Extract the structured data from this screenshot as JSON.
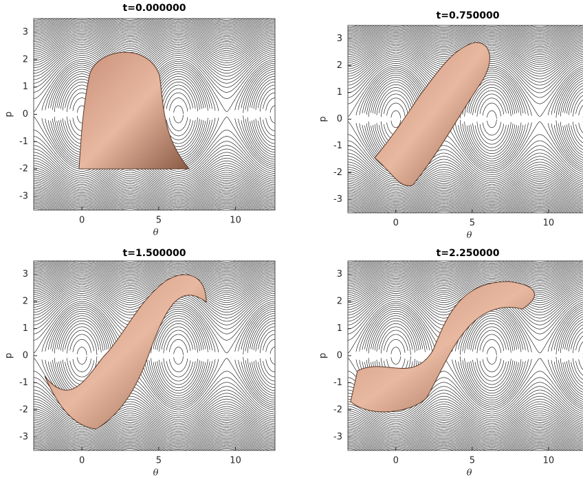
{
  "chart_data": [
    {
      "type": "phase-portrait",
      "title": "t=0.000000",
      "xlabel": "θ",
      "ylabel": "p",
      "xlim": [
        -3.14,
        12.57
      ],
      "ylim": [
        -3.5,
        3.5
      ],
      "xticks": [
        0,
        5,
        10
      ],
      "yticks": [
        -3,
        -2,
        -1,
        0,
        1,
        2,
        3
      ]
    },
    {
      "type": "phase-portrait",
      "title": "t=0.750000",
      "xlabel": "θ",
      "ylabel": "p",
      "xlim": [
        -3.14,
        12.57
      ],
      "ylim": [
        -3.5,
        3.5
      ],
      "xticks": [
        0,
        5,
        10
      ],
      "yticks": [
        -3,
        -2,
        -1,
        0,
        1,
        2,
        3
      ]
    },
    {
      "type": "phase-portrait",
      "title": "t=1.500000",
      "xlabel": "θ",
      "ylabel": "p",
      "xlim": [
        -3.14,
        12.57
      ],
      "ylim": [
        -3.5,
        3.5
      ],
      "xticks": [
        0,
        5,
        10
      ],
      "yticks": [
        -3,
        -2,
        -1,
        0,
        1,
        2,
        3
      ]
    },
    {
      "type": "phase-portrait",
      "title": "t=2.250000",
      "xlabel": "θ",
      "ylabel": "p",
      "xlim": [
        -3.14,
        12.57
      ],
      "ylim": [
        -3.5,
        3.5
      ],
      "xticks": [
        0,
        5,
        10
      ],
      "yticks": [
        -3,
        -2,
        -1,
        0,
        1,
        2,
        3
      ]
    }
  ]
}
